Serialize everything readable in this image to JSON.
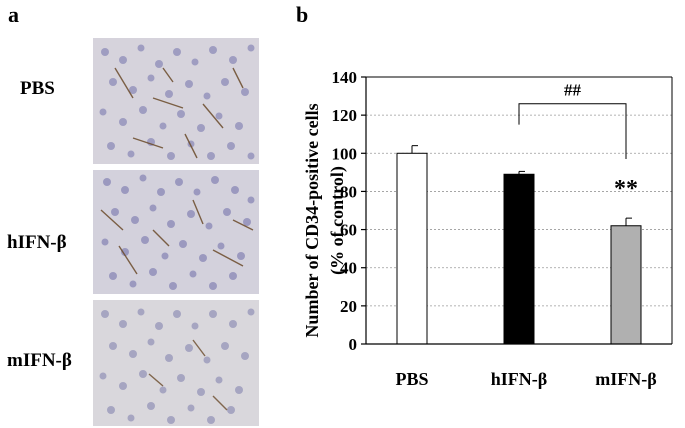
{
  "panels": {
    "a_label": "a",
    "b_label": "b",
    "rows": [
      {
        "label": "PBS"
      },
      {
        "label": "hIFN-β"
      },
      {
        "label": "mIFN-β"
      }
    ]
  },
  "chart_data": {
    "type": "bar",
    "title": "",
    "xlabel": "",
    "ylabel_line1": "Number of CD34-positive cells",
    "ylabel_line2": "(% of control)",
    "ylim": [
      0,
      140
    ],
    "yticks": [
      0,
      20,
      40,
      60,
      80,
      100,
      120,
      140
    ],
    "grid": true,
    "categories": [
      "PBS",
      "hIFN-β",
      "mIFN-β"
    ],
    "values": [
      100,
      89,
      62
    ],
    "errors": [
      4,
      1.5,
      4
    ],
    "bar_colors": [
      "#ffffff",
      "#000000",
      "#b0b0b0"
    ],
    "significance": {
      "label": "**",
      "category_index": 2
    },
    "comparison": {
      "label": "##",
      "from_index": 1,
      "to_index": 2
    }
  }
}
